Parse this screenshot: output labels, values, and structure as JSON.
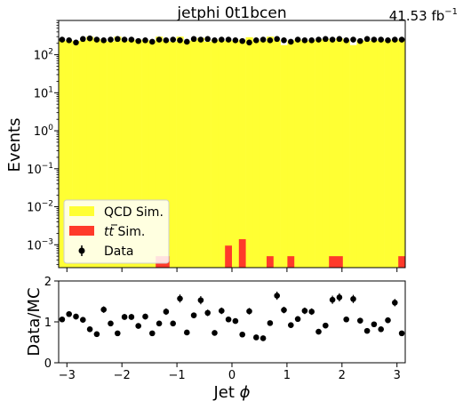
{
  "header": {
    "title": "jetphi  0t1bcen",
    "lumi_value": "41.53 fb",
    "lumi_exp": "−1"
  },
  "colors": {
    "qcd": "#ffff33",
    "ttbar": "#ff3a2a",
    "data": "#000000"
  },
  "chart_data": [
    {
      "type": "bar",
      "title": "jetphi  0t1bcen",
      "ylabel": "Events",
      "yscale": "log",
      "ylim": [
        0.00025,
        800
      ],
      "xlim": [
        -3.15,
        3.15
      ],
      "y_ticks": [
        {
          "value": 0.001,
          "base": "10",
          "exp": "−3"
        },
        {
          "value": 0.01,
          "base": "10",
          "exp": "−2"
        },
        {
          "value": 0.1,
          "base": "10",
          "exp": "−1"
        },
        {
          "value": 1,
          "base": "10",
          "exp": "0"
        },
        {
          "value": 10,
          "base": "10",
          "exp": "1"
        },
        {
          "value": 100,
          "base": "10",
          "exp": "2"
        }
      ],
      "legend": {
        "position": "lower-left",
        "entries": [
          {
            "key": "qcd",
            "label": "QCD Sim."
          },
          {
            "key": "ttbar",
            "label_t1": "t",
            "label_t2": "t",
            "label_rest": " Sim."
          },
          {
            "key": "data",
            "label": "Data"
          }
        ]
      },
      "series": [
        {
          "name": "QCD Sim.",
          "kind": "stack",
          "edges_start": -3.15,
          "bin_width": 0.126,
          "values": [
            235,
            240,
            230,
            235,
            300,
            260,
            235,
            220,
            300,
            230,
            240,
            250,
            235,
            240,
            300,
            230,
            220,
            300,
            230,
            240,
            280,
            220,
            250,
            230,
            240,
            230,
            250,
            290,
            240,
            230,
            300,
            240,
            180,
            240,
            250,
            230,
            240,
            250,
            260,
            230,
            270,
            240,
            180,
            240,
            230,
            240,
            230,
            250,
            240,
            250
          ]
        },
        {
          "name": "tt̄ Sim.",
          "kind": "stack",
          "bins": [
            {
              "x0": -1.386,
              "x1": -1.134,
              "value": 0.0005
            },
            {
              "x0": -0.126,
              "x1": 0.0,
              "value": 0.00095
            },
            {
              "x0": 0.126,
              "x1": 0.252,
              "value": 0.0014
            },
            {
              "x0": 0.63,
              "x1": 0.756,
              "value": 0.0005
            },
            {
              "x0": 1.008,
              "x1": 1.134,
              "value": 0.0005
            },
            {
              "x0": 1.764,
              "x1": 2.016,
              "value": 0.0005
            },
            {
              "x0": 3.024,
              "x1": 3.15,
              "value": 0.0005
            }
          ]
        },
        {
          "name": "Data",
          "kind": "points",
          "x": [
            -3.087,
            -2.961,
            -2.835,
            -2.709,
            -2.583,
            -2.457,
            -2.331,
            -2.205,
            -2.079,
            -1.953,
            -1.827,
            -1.701,
            -1.575,
            -1.449,
            -1.323,
            -1.197,
            -1.071,
            -0.945,
            -0.819,
            -0.693,
            -0.567,
            -0.441,
            -0.315,
            -0.189,
            -0.063,
            0.063,
            0.189,
            0.315,
            0.441,
            0.567,
            0.693,
            0.819,
            0.945,
            1.071,
            1.197,
            1.323,
            1.449,
            1.575,
            1.701,
            1.827,
            1.953,
            2.079,
            2.205,
            2.331,
            2.457,
            2.583,
            2.709,
            2.835,
            2.961,
            3.087
          ],
          "y": [
            250,
            240,
            210,
            260,
            270,
            250,
            240,
            250,
            260,
            250,
            250,
            230,
            240,
            220,
            250,
            240,
            250,
            240,
            220,
            260,
            250,
            260,
            240,
            250,
            250,
            240,
            230,
            210,
            240,
            250,
            240,
            260,
            240,
            220,
            250,
            240,
            240,
            250,
            260,
            250,
            260,
            240,
            250,
            230,
            260,
            250,
            250,
            240,
            250,
            250
          ]
        }
      ]
    },
    {
      "type": "scatter",
      "xlabel": "Jet ϕ",
      "ylabel": "Data/MC",
      "ylim": [
        0,
        2
      ],
      "xlim": [
        -3.15,
        3.15
      ],
      "x_ticks": [
        -3,
        -2,
        -1,
        0,
        1,
        2,
        3
      ],
      "x_tick_labels": [
        "−3",
        "−2",
        "−1",
        "0",
        "1",
        "2",
        "3"
      ],
      "y_ticks": [
        0,
        1,
        2
      ],
      "y_tick_labels": [
        "0",
        "1",
        "2"
      ],
      "series": [
        {
          "name": "Data/MC",
          "x": [
            -3.087,
            -2.961,
            -2.835,
            -2.709,
            -2.583,
            -2.457,
            -2.331,
            -2.205,
            -2.079,
            -1.953,
            -1.827,
            -1.701,
            -1.575,
            -1.449,
            -1.323,
            -1.197,
            -1.071,
            -0.945,
            -0.819,
            -0.693,
            -0.567,
            -0.441,
            -0.315,
            -0.189,
            -0.063,
            0.063,
            0.189,
            0.315,
            0.441,
            0.567,
            0.693,
            0.819,
            0.945,
            1.071,
            1.197,
            1.323,
            1.449,
            1.575,
            1.701,
            1.827,
            1.953,
            2.079,
            2.205,
            2.331,
            2.457,
            2.583,
            2.709,
            2.835,
            2.961,
            3.087
          ],
          "y": [
            1.06,
            1.19,
            1.13,
            1.05,
            0.82,
            0.7,
            1.3,
            0.96,
            0.72,
            1.12,
            1.12,
            0.9,
            1.13,
            0.72,
            0.96,
            1.25,
            0.96,
            1.57,
            0.74,
            1.16,
            1.53,
            1.22,
            0.73,
            1.27,
            1.06,
            1.02,
            0.69,
            1.26,
            0.62,
            0.6,
            0.97,
            1.64,
            1.29,
            0.92,
            1.07,
            1.27,
            1.25,
            0.76,
            0.91,
            1.54,
            1.6,
            1.06,
            1.56,
            1.03,
            0.78,
            0.94,
            0.82,
            1.04,
            1.47,
            0.72
          ],
          "err": [
            0.06,
            0.07,
            0.07,
            0.06,
            0.05,
            0.05,
            0.08,
            0.06,
            0.05,
            0.07,
            0.07,
            0.06,
            0.07,
            0.05,
            0.06,
            0.08,
            0.06,
            0.1,
            0.05,
            0.07,
            0.1,
            0.08,
            0.05,
            0.08,
            0.07,
            0.06,
            0.05,
            0.08,
            0.04,
            0.04,
            0.06,
            0.1,
            0.08,
            0.06,
            0.07,
            0.08,
            0.08,
            0.05,
            0.06,
            0.1,
            0.1,
            0.07,
            0.1,
            0.07,
            0.05,
            0.06,
            0.05,
            0.07,
            0.09,
            0.05
          ]
        }
      ]
    }
  ]
}
